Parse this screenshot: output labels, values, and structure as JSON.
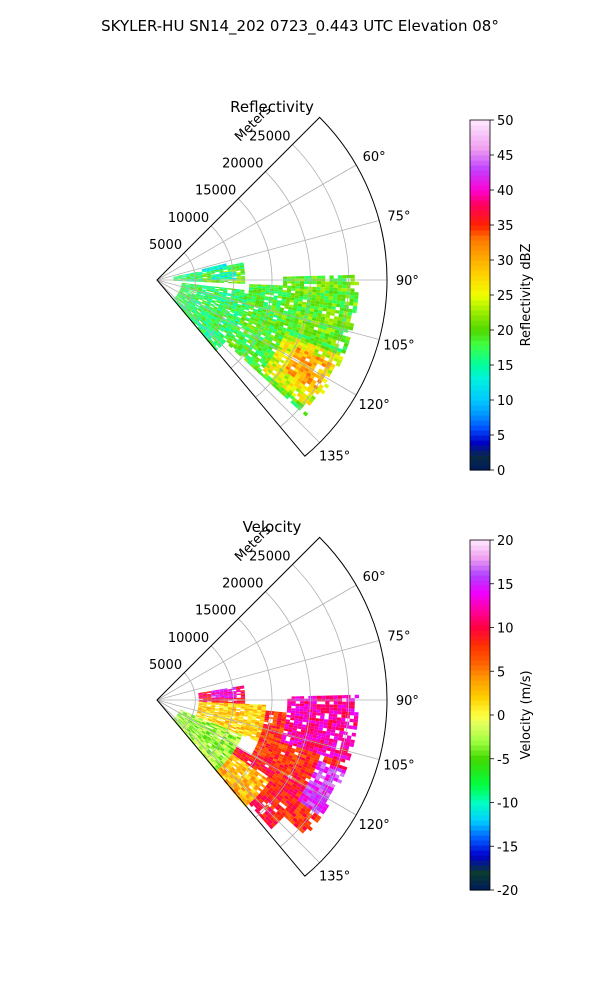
{
  "figure": {
    "suptitle": "SKYLER-HU  SN14_202  0723_0.443 UTC Elevation 08°"
  },
  "chart_data": [
    {
      "type": "heatmap",
      "subtype": "polar-sector",
      "title": "Reflectivity",
      "range_label": "Meters",
      "range_ticks": [
        5000,
        10000,
        15000,
        20000,
        25000
      ],
      "rmax": 30000,
      "theta_range_deg": [
        45,
        140
      ],
      "theta_ticks": [
        "60°",
        "75°",
        "90°",
        "105°",
        "120°",
        "135°"
      ],
      "theta_tick_values": [
        60,
        75,
        90,
        105,
        120,
        135
      ],
      "colorbar": {
        "label": "Reflectivity dBZ",
        "range": [
          0,
          50
        ],
        "ticks": [
          0,
          5,
          10,
          15,
          20,
          25,
          30,
          35,
          40,
          45,
          50
        ]
      },
      "echo_regions": [
        {
          "theta": [
            78,
            92
          ],
          "r": [
            2000,
            11000
          ],
          "dbz": 17
        },
        {
          "theta": [
            82,
            92
          ],
          "r": [
            6000,
            11000
          ],
          "dbz": 21
        },
        {
          "theta": [
            83,
            89
          ],
          "r": [
            7000,
            10000
          ],
          "dbz": 14
        },
        {
          "theta": [
            96,
            140
          ],
          "r": [
            3000,
            12000
          ],
          "dbz": 17
        },
        {
          "theta": [
            92,
            132
          ],
          "r": [
            12000,
            26000
          ],
          "dbz": 19
        },
        {
          "theta": [
            88,
            110
          ],
          "r": [
            16000,
            26000
          ],
          "dbz": 20
        },
        {
          "theta": [
            112,
            130
          ],
          "r": [
            18000,
            26000
          ],
          "dbz": 25
        },
        {
          "theta": [
            115,
            125
          ],
          "r": [
            20000,
            25000
          ],
          "dbz": 30
        },
        {
          "theta": [
            76,
            80
          ],
          "r": [
            6000,
            9000
          ],
          "dbz": 12
        }
      ]
    },
    {
      "type": "heatmap",
      "subtype": "polar-sector",
      "title": "Velocity",
      "range_label": "Meters",
      "range_ticks": [
        5000,
        10000,
        15000,
        20000,
        25000
      ],
      "rmax": 30000,
      "theta_range_deg": [
        45,
        140
      ],
      "theta_ticks": [
        "60°",
        "75°",
        "90°",
        "105°",
        "120°",
        "135°"
      ],
      "theta_tick_values": [
        60,
        75,
        90,
        105,
        120,
        135
      ],
      "colorbar": {
        "label": "Velocity (m/s)",
        "range": [
          -20,
          20
        ],
        "ticks": [
          -20,
          -15,
          -10,
          -5,
          0,
          5,
          10,
          15,
          20
        ]
      },
      "echo_regions": [
        {
          "theta": [
            80,
            92
          ],
          "r": [
            5000,
            11000
          ],
          "vel": 10
        },
        {
          "theta": [
            80,
            88
          ],
          "r": [
            7000,
            10000
          ],
          "vel": 14
        },
        {
          "theta": [
            112,
            140
          ],
          "r": [
            3000,
            12000
          ],
          "vel": -3
        },
        {
          "theta": [
            92,
            112
          ],
          "r": [
            5000,
            14000
          ],
          "vel": 2
        },
        {
          "theta": [
            95,
            132
          ],
          "r": [
            14000,
            26000
          ],
          "vel": 8
        },
        {
          "theta": [
            88,
            108
          ],
          "r": [
            17000,
            26000
          ],
          "vel": 12
        },
        {
          "theta": [
            110,
            125
          ],
          "r": [
            22000,
            26000
          ],
          "vel": 15
        },
        {
          "theta": [
            120,
            138
          ],
          "r": [
            12000,
            22000
          ],
          "vel": 9
        },
        {
          "theta": [
            125,
            140
          ],
          "r": [
            12000,
            18000
          ],
          "vel": 3
        }
      ]
    }
  ]
}
